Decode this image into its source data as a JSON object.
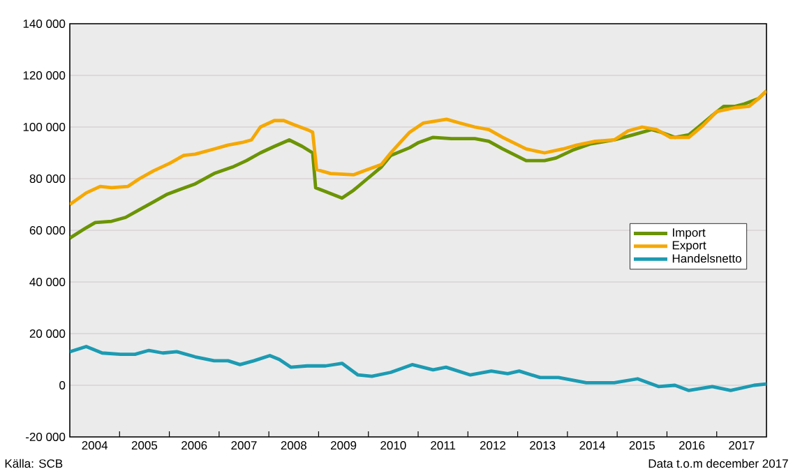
{
  "chart_data": {
    "type": "line",
    "xlim": [
      2004,
      2018
    ],
    "xticks": [
      {
        "value": 2005,
        "label": null
      },
      {
        "value": 2006,
        "label": null
      },
      {
        "value": 2007,
        "label": null
      },
      {
        "value": 2008,
        "label": null
      },
      {
        "value": 2009,
        "label": null
      },
      {
        "value": 2010,
        "label": null
      },
      {
        "value": 2011,
        "label": null
      },
      {
        "value": 2012,
        "label": null
      },
      {
        "value": 2013,
        "label": null
      },
      {
        "value": 2014,
        "label": null
      },
      {
        "value": 2015,
        "label": null
      },
      {
        "value": 2016,
        "label": null
      },
      {
        "value": 2017,
        "label": null
      },
      {
        "value": 2004.5,
        "label": "2004"
      },
      {
        "value": 2005.5,
        "label": "2005"
      },
      {
        "value": 2006.5,
        "label": "2006"
      },
      {
        "value": 2007.5,
        "label": "2007"
      },
      {
        "value": 2008.5,
        "label": "2008"
      },
      {
        "value": 2009.5,
        "label": "2009"
      },
      {
        "value": 2010.5,
        "label": "2010"
      },
      {
        "value": 2011.5,
        "label": "2011"
      },
      {
        "value": 2012.5,
        "label": "2012"
      },
      {
        "value": 2013.5,
        "label": "2013"
      },
      {
        "value": 2014.5,
        "label": "2014"
      },
      {
        "value": 2015.5,
        "label": "2015"
      },
      {
        "value": 2016.5,
        "label": "2016"
      },
      {
        "value": 2017.5,
        "label": "2017"
      }
    ],
    "ylim": [
      -20000,
      140000
    ],
    "yticks": [
      {
        "value": -20000,
        "label": "-20 000"
      },
      {
        "value": 0,
        "label": "0"
      },
      {
        "value": 20000,
        "label": "20 000"
      },
      {
        "value": 40000,
        "label": "40 000"
      },
      {
        "value": 60000,
        "label": "60 000"
      },
      {
        "value": 80000,
        "label": "80 000"
      },
      {
        "value": 100000,
        "label": "100 000"
      },
      {
        "value": 120000,
        "label": "120 000"
      },
      {
        "value": 140000,
        "label": "140 000"
      }
    ],
    "grid": "y",
    "legend": "right",
    "line_style": "solid",
    "series": [
      {
        "name": "Import",
        "color": "#6b9400",
        "x": [
          2004.0,
          2004.33,
          2004.51,
          2004.84,
          2005.12,
          2005.4,
          2005.68,
          2005.96,
          2006.24,
          2006.52,
          2006.9,
          2007.27,
          2007.55,
          2007.83,
          2008.11,
          2008.41,
          2008.67,
          2008.88,
          2008.94,
          2009.14,
          2009.47,
          2009.7,
          2009.98,
          2010.26,
          2010.45,
          2010.83,
          2011.01,
          2011.3,
          2011.67,
          2012.14,
          2012.42,
          2012.7,
          2013.17,
          2013.54,
          2013.77,
          2014.1,
          2014.47,
          2014.94,
          2015.32,
          2015.69,
          2015.88,
          2016.16,
          2016.44,
          2016.63,
          2016.91,
          2017.14,
          2017.37,
          2017.56,
          2017.84,
          2018.0
        ],
        "values": [
          57000,
          61000,
          63000,
          63500,
          65000,
          68000,
          71000,
          74000,
          76000,
          78000,
          82000,
          84500,
          87000,
          90000,
          92500,
          95000,
          92500,
          90000,
          76500,
          75000,
          72500,
          75500,
          80000,
          84500,
          89000,
          92000,
          94000,
          96000,
          95500,
          95500,
          94500,
          91500,
          87000,
          87000,
          88000,
          91000,
          93500,
          95000,
          97000,
          99000,
          98000,
          96000,
          97000,
          100000,
          104500,
          108000,
          108000,
          109000,
          111000,
          114000
        ]
      },
      {
        "name": "Export",
        "color": "#f5a800",
        "x": [
          2004.0,
          2004.33,
          2004.61,
          2004.84,
          2005.17,
          2005.4,
          2005.68,
          2006.01,
          2006.29,
          2006.52,
          2006.9,
          2007.18,
          2007.46,
          2007.65,
          2007.83,
          2008.11,
          2008.3,
          2008.49,
          2008.77,
          2008.88,
          2008.96,
          2009.24,
          2009.7,
          2009.98,
          2010.26,
          2010.45,
          2010.64,
          2010.83,
          2011.1,
          2011.57,
          2011.85,
          2012.14,
          2012.42,
          2012.7,
          2013.17,
          2013.54,
          2013.91,
          2014.19,
          2014.56,
          2014.94,
          2015.22,
          2015.5,
          2015.79,
          2016.07,
          2016.44,
          2016.72,
          2017.0,
          2017.37,
          2017.65,
          2017.84,
          2018.0
        ],
        "values": [
          70000,
          74500,
          77000,
          76500,
          77000,
          80000,
          83000,
          86000,
          89000,
          89500,
          91500,
          93000,
          94000,
          95000,
          100000,
          102500,
          102500,
          101000,
          99000,
          98000,
          83500,
          82000,
          81500,
          83500,
          85500,
          90000,
          94000,
          98000,
          101500,
          103000,
          101500,
          100000,
          99000,
          96000,
          91500,
          90000,
          91500,
          93000,
          94500,
          95000,
          98500,
          100000,
          99000,
          96000,
          96000,
          100500,
          106000,
          107500,
          108000,
          111000,
          114000
        ]
      },
      {
        "name": "Handelsnetto",
        "color": "#1c9bb2",
        "x": [
          2004.0,
          2004.33,
          2004.65,
          2005.02,
          2005.31,
          2005.59,
          2005.87,
          2006.15,
          2006.52,
          2006.9,
          2007.18,
          2007.42,
          2007.7,
          2008.02,
          2008.21,
          2008.44,
          2008.77,
          2009.14,
          2009.47,
          2009.79,
          2010.07,
          2010.45,
          2010.88,
          2011.3,
          2011.56,
          2012.05,
          2012.47,
          2012.8,
          2013.03,
          2013.45,
          2013.82,
          2014.38,
          2014.94,
          2015.41,
          2015.83,
          2016.16,
          2016.44,
          2016.91,
          2017.28,
          2017.75,
          2018.0
        ],
        "values": [
          13000,
          15000,
          12500,
          12000,
          12000,
          13500,
          12500,
          13000,
          11000,
          9500,
          9500,
          8000,
          9500,
          11500,
          10000,
          7000,
          7500,
          7500,
          8500,
          4000,
          3500,
          5000,
          8000,
          6000,
          7000,
          4000,
          5500,
          4500,
          5500,
          3000,
          3000,
          1000,
          1000,
          2500,
          -500,
          0,
          -2000,
          -500,
          -2000,
          0,
          500
        ]
      }
    ],
    "annotations": [
      "Källa: SCB",
      "Data t.o.m december 2017"
    ]
  }
}
